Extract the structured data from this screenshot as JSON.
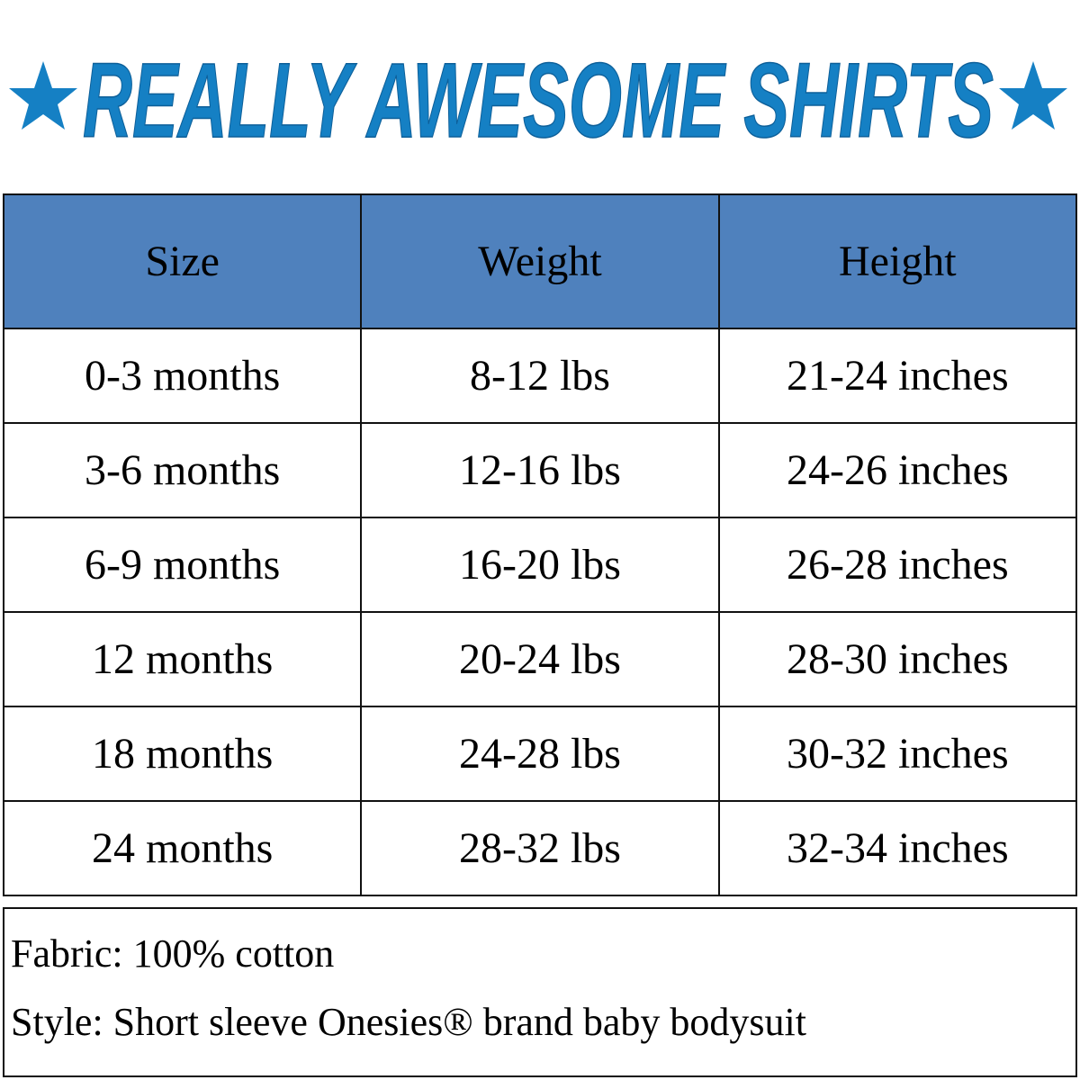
{
  "title": {
    "text": "REALLY AWESOME SHIRTS",
    "color": "#1580c4",
    "star_icon": "star-icon"
  },
  "table": {
    "header_color": "#4f81bd",
    "headers": [
      "Size",
      "Weight",
      "Height"
    ],
    "rows": [
      [
        "0-3 months",
        "8-12 lbs",
        "21-24 inches"
      ],
      [
        "3-6 months",
        "12-16 lbs",
        "24-26 inches"
      ],
      [
        "6-9 months",
        "16-20 lbs",
        "26-28 inches"
      ],
      [
        "12 months",
        "20-24 lbs",
        "28-30 inches"
      ],
      [
        "18 months",
        "24-28 lbs",
        "30-32 inches"
      ],
      [
        "24 months",
        "28-32 lbs",
        "32-34 inches"
      ]
    ]
  },
  "footer": {
    "fabric": "Fabric: 100% cotton",
    "style": "Style: Short sleeve Onesies® brand baby bodysuit"
  }
}
